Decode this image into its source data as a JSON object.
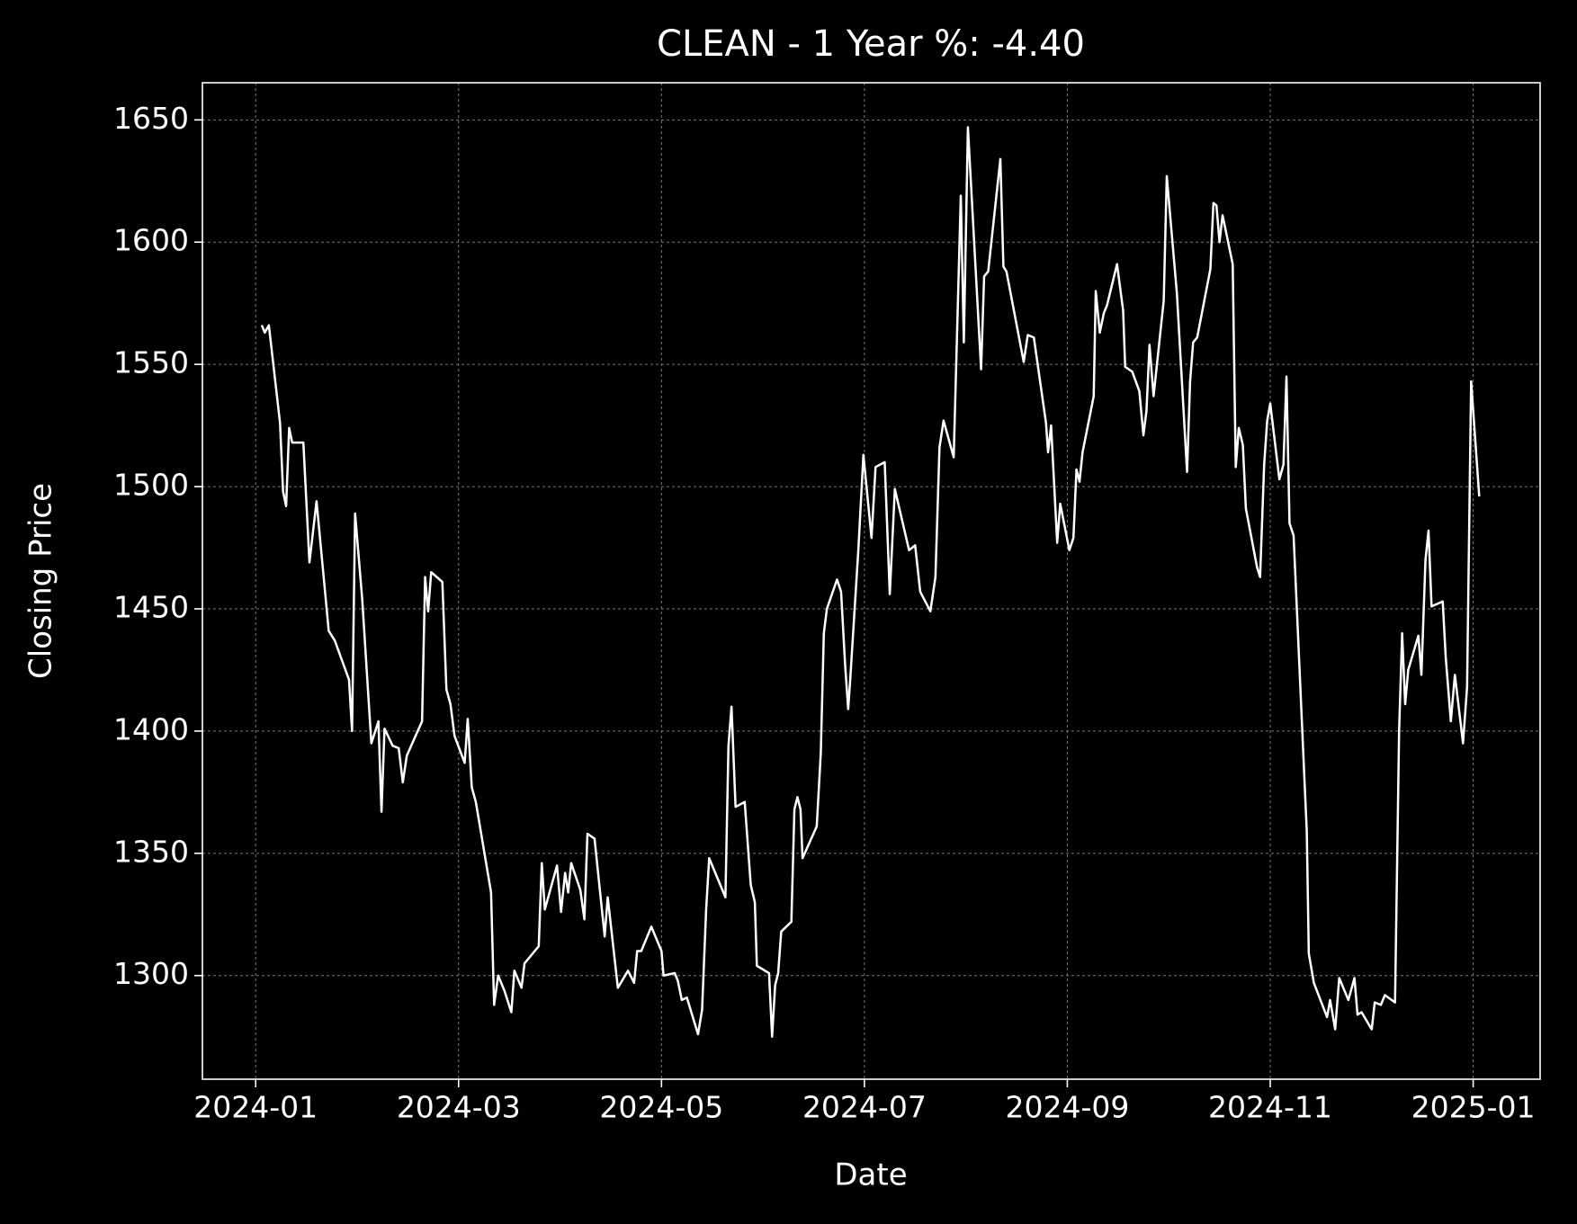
{
  "chart_data": {
    "type": "line",
    "title": "CLEAN - 1 Year %: -4.40",
    "x_label": "Date",
    "y_label": "Closing Price",
    "xlim": [
      -0.525,
      12.66
    ],
    "ylim": [
      1257.6,
      1665.2
    ],
    "xticks": [
      {
        "value": 0,
        "label": "2024-01"
      },
      {
        "value": 2,
        "label": "2024-03"
      },
      {
        "value": 4,
        "label": "2024-05"
      },
      {
        "value": 6,
        "label": "2024-07"
      },
      {
        "value": 8,
        "label": "2024-09"
      },
      {
        "value": 10,
        "label": "2024-11"
      },
      {
        "value": 12,
        "label": "2025-01"
      }
    ],
    "yticks": [
      1300,
      1350,
      1400,
      1450,
      1500,
      1550,
      1600,
      1650
    ],
    "grid": true,
    "series": [
      {
        "name": "CLEAN",
        "color": "#ffffff",
        "x": [
          0.06,
          0.09,
          0.13,
          0.24,
          0.27,
          0.3,
          0.33,
          0.36,
          0.47,
          0.53,
          0.6,
          0.72,
          0.78,
          0.92,
          0.95,
          0.98,
          1.05,
          1.14,
          1.21,
          1.24,
          1.27,
          1.35,
          1.41,
          1.45,
          1.49,
          1.64,
          1.67,
          1.7,
          1.73,
          1.84,
          1.88,
          1.92,
          1.96,
          2.06,
          2.09,
          2.13,
          2.17,
          2.32,
          2.35,
          2.39,
          2.45,
          2.52,
          2.55,
          2.62,
          2.65,
          2.79,
          2.82,
          2.85,
          2.97,
          3.01,
          3.05,
          3.08,
          3.11,
          3.2,
          3.24,
          3.27,
          3.34,
          3.44,
          3.47,
          3.57,
          3.67,
          3.73,
          3.76,
          3.8,
          3.9,
          4.0,
          4.02,
          4.13,
          4.16,
          4.2,
          4.25,
          4.36,
          4.4,
          4.44,
          4.47,
          4.63,
          4.66,
          4.69,
          4.73,
          4.82,
          4.88,
          4.92,
          4.94,
          5.06,
          5.09,
          5.12,
          5.15,
          5.18,
          5.28,
          5.31,
          5.34,
          5.37,
          5.39,
          5.53,
          5.57,
          5.6,
          5.63,
          5.73,
          5.77,
          5.81,
          5.84,
          5.86,
          5.94,
          5.99,
          6.07,
          6.11,
          6.2,
          6.25,
          6.3,
          6.44,
          6.5,
          6.55,
          6.65,
          6.7,
          6.74,
          6.78,
          6.88,
          6.95,
          6.98,
          7.02,
          7.15,
          7.18,
          7.22,
          7.34,
          7.37,
          7.4,
          7.57,
          7.61,
          7.67,
          7.79,
          7.81,
          7.84,
          7.9,
          7.93,
          8.02,
          8.06,
          8.09,
          8.12,
          8.15,
          8.26,
          8.28,
          8.32,
          8.36,
          8.39,
          8.49,
          8.55,
          8.57,
          8.64,
          8.71,
          8.75,
          8.78,
          8.81,
          8.85,
          8.95,
          8.98,
          9.08,
          9.18,
          9.21,
          9.24,
          9.28,
          9.41,
          9.44,
          9.47,
          9.5,
          9.53,
          9.63,
          9.66,
          9.69,
          9.73,
          9.76,
          9.87,
          9.9,
          9.94,
          9.97,
          10.0,
          10.09,
          10.13,
          10.16,
          10.19,
          10.23,
          10.36,
          10.38,
          10.43,
          10.56,
          10.59,
          10.64,
          10.68,
          10.77,
          10.83,
          10.86,
          10.9,
          11.0,
          11.03,
          11.09,
          11.13,
          11.23,
          11.27,
          11.3,
          11.33,
          11.36,
          11.46,
          11.49,
          11.53,
          11.56,
          11.59,
          11.7,
          11.73,
          11.78,
          11.82,
          11.9,
          11.94,
          11.98,
          12.06
        ],
        "values": [
          1566,
          1563,
          1566,
          1526,
          1498,
          1492,
          1524,
          1518,
          1518,
          1469,
          1494,
          1441,
          1437,
          1421,
          1400,
          1489,
          1454,
          1395,
          1404,
          1367,
          1401,
          1394,
          1393,
          1379,
          1390,
          1404,
          1463,
          1449,
          1465,
          1461,
          1417,
          1411,
          1398,
          1387,
          1405,
          1377,
          1371,
          1334,
          1288,
          1300,
          1294,
          1285,
          1302,
          1295,
          1305,
          1312,
          1346,
          1327,
          1345,
          1326,
          1342,
          1334,
          1346,
          1335,
          1323,
          1358,
          1356,
          1316,
          1332,
          1295,
          1302,
          1297,
          1310,
          1310,
          1320,
          1310,
          1300,
          1301,
          1298,
          1290,
          1291,
          1276,
          1286,
          1327,
          1348,
          1332,
          1394,
          1410,
          1369,
          1371,
          1337,
          1330,
          1304,
          1301,
          1275,
          1296,
          1301,
          1318,
          1322,
          1368,
          1373,
          1368,
          1348,
          1361,
          1391,
          1440,
          1450,
          1462,
          1457,
          1427,
          1409,
          1421,
          1474,
          1513,
          1479,
          1508,
          1510,
          1456,
          1499,
          1474,
          1476,
          1457,
          1449,
          1463,
          1516,
          1527,
          1512,
          1619,
          1559,
          1647,
          1548,
          1586,
          1588,
          1634,
          1590,
          1588,
          1551,
          1562,
          1561,
          1526,
          1514,
          1525,
          1477,
          1493,
          1474,
          1479,
          1507,
          1502,
          1514,
          1537,
          1580,
          1563,
          1571,
          1574,
          1591,
          1572,
          1549,
          1547,
          1539,
          1521,
          1531,
          1558,
          1537,
          1576,
          1627,
          1579,
          1506,
          1543,
          1559,
          1561,
          1589,
          1616,
          1615,
          1600,
          1611,
          1591,
          1508,
          1524,
          1517,
          1491,
          1467,
          1463,
          1509,
          1527,
          1534,
          1503,
          1509,
          1545,
          1485,
          1480,
          1359,
          1309,
          1297,
          1283,
          1290,
          1278,
          1299,
          1290,
          1299,
          1284,
          1285,
          1278,
          1289,
          1288,
          1292,
          1289,
          1400,
          1440,
          1411,
          1425,
          1439,
          1423,
          1470,
          1482,
          1451,
          1453,
          1430,
          1404,
          1423,
          1395,
          1418,
          1543,
          1496
        ]
      }
    ]
  }
}
